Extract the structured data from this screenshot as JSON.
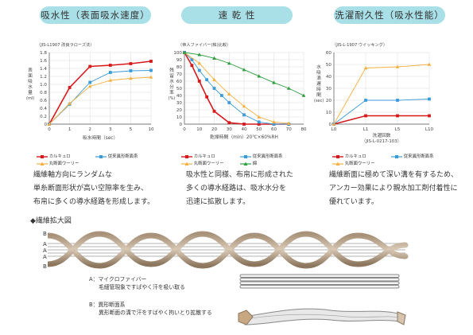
{
  "headers": {
    "absorption": "吸水性（表面吸水速度）",
    "drying": "速 乾 性",
    "durability": "洗濯耐久性（吸水性能）"
  },
  "charts_meta": {
    "c1_caption": "（JIS-L1907 改良ラローズ法）",
    "c1_ylabel": [
      "表",
      "面",
      "吸",
      "水",
      "量",
      "(ml)"
    ],
    "c2_caption": "（帝人ファイバー(株)比較）",
    "c2_ylabel": [
      "残",
      "留",
      "水",
      "分",
      "率",
      "(%)"
    ],
    "c2_cond": "乾燥時間（min）20℃×60%RH",
    "c3_caption": "（JIS-L-1907 ウイッキング）",
    "c3_ylabel": [
      "水",
      "吸",
      "滴",
      "遅",
      "時",
      "間",
      "(sec)"
    ],
    "c3_xlabel2": "（JIS-L-0217-103）"
  },
  "legend": {
    "calcuro": "カルキュロ",
    "conventional": "従来異形断面系",
    "round": "丸断面ウーリー",
    "cotton": "綿"
  },
  "descriptions": {
    "d1": [
      "繊維軸方向にランダムな",
      "単糸断面形状が高い空隙率を生み、",
      "布帛に多くの導水経路を形成します。"
    ],
    "d2": [
      "吸水性と同様、布帛に形成された",
      "多くの導水経路は、吸水水分を",
      "迅速に拡散します。"
    ],
    "d3": [
      "繊維断面に極めて深い溝を有するため、",
      "アンカー効果により親水加工剤付着性に",
      "優れています。"
    ]
  },
  "fiber": {
    "title": "◆繊維拡大図",
    "labels": [
      "B",
      "A",
      "A",
      "A",
      "B"
    ],
    "a_label": "A：マイクロファイバー",
    "a_desc": "毛細管現象ですばやく汗を吸い取る",
    "b_label": "B：異形断面系",
    "b_desc": "異形断面の溝で汗をすばやく拘いとり拡散する"
  },
  "colors": {
    "calcuro": "#d7191c",
    "conventional": "#3b9ad8",
    "round": "#f5b041",
    "cotton": "#2e9e3e",
    "badge": "#a9dfe6"
  },
  "chart_data": [
    {
      "type": "line",
      "xlabel": "吸水時間（sec）",
      "ylabel": "表面吸水量(ml)",
      "categories": [
        "0",
        "1",
        "2",
        "3",
        "5",
        "10"
      ],
      "ylim": [
        0,
        1.8
      ],
      "yticks": [
        "0",
        "0.2",
        "0.4",
        "0.6",
        "0.8",
        "1.0",
        "1.2",
        "1.4",
        "1.6",
        "1.8"
      ],
      "grid": true,
      "series": [
        {
          "name": "カルキュロ",
          "values": [
            0,
            0.92,
            1.45,
            1.48,
            1.52,
            1.58
          ]
        },
        {
          "name": "従来異形断面系",
          "values": [
            0,
            0.5,
            1.05,
            1.3,
            1.34,
            1.35
          ]
        },
        {
          "name": "丸断面ウーリー",
          "values": [
            0,
            0.52,
            0.95,
            1.1,
            1.15,
            1.18
          ]
        }
      ]
    },
    {
      "type": "line",
      "xlabel": "乾燥時間（min）20℃×60%RH",
      "ylabel": "残留水分率(%)",
      "x": [
        0,
        10,
        20,
        30,
        40,
        50,
        60,
        70,
        80
      ],
      "xticks": [
        "0",
        "10",
        "20",
        "30",
        "40",
        "50",
        "60",
        "70",
        "80"
      ],
      "ylim": [
        0,
        100
      ],
      "yticks": [
        "0",
        "10",
        "20",
        "30",
        "40",
        "50",
        "60",
        "70",
        "80",
        "90",
        "100"
      ],
      "grid": true,
      "series": [
        {
          "name": "カルキュロ",
          "x": [
            0,
            5,
            10,
            15,
            20,
            30,
            40,
            50,
            60,
            70
          ],
          "values": [
            100,
            82,
            60,
            38,
            18,
            2,
            0,
            0,
            0,
            0
          ]
        },
        {
          "name": "従来異形断面系",
          "x": [
            0,
            5,
            10,
            15,
            20,
            25,
            30,
            40,
            50,
            60,
            70
          ],
          "values": [
            100,
            90,
            75,
            62,
            50,
            40,
            30,
            13,
            3,
            0,
            0
          ]
        },
        {
          "name": "丸断面ウーリー",
          "x": [
            0,
            10,
            20,
            30,
            40,
            50,
            60,
            70
          ],
          "values": [
            100,
            85,
            62,
            42,
            25,
            10,
            3,
            1
          ]
        },
        {
          "name": "綿",
          "x": [
            0,
            10,
            20,
            30,
            40,
            50,
            60,
            70,
            80
          ],
          "values": [
            100,
            97,
            92,
            85,
            76,
            67,
            58,
            50,
            40
          ]
        }
      ]
    },
    {
      "type": "line",
      "xlabel": "洗濯回数",
      "ylabel": "水滴吸収遅延時間(sec)",
      "categories": [
        "L0",
        "L1",
        "L5",
        "L10"
      ],
      "ylim": [
        0,
        60
      ],
      "yticks": [
        "0",
        "10",
        "20",
        "30",
        "40",
        "50",
        "60"
      ],
      "grid": true,
      "series": [
        {
          "name": "カルキュロ",
          "values": [
            0,
            7,
            7,
            7
          ]
        },
        {
          "name": "従来異形断面系",
          "values": [
            0,
            20,
            20,
            21
          ]
        },
        {
          "name": "丸断面ウーリー",
          "values": [
            0,
            47,
            48,
            50
          ]
        }
      ]
    }
  ]
}
